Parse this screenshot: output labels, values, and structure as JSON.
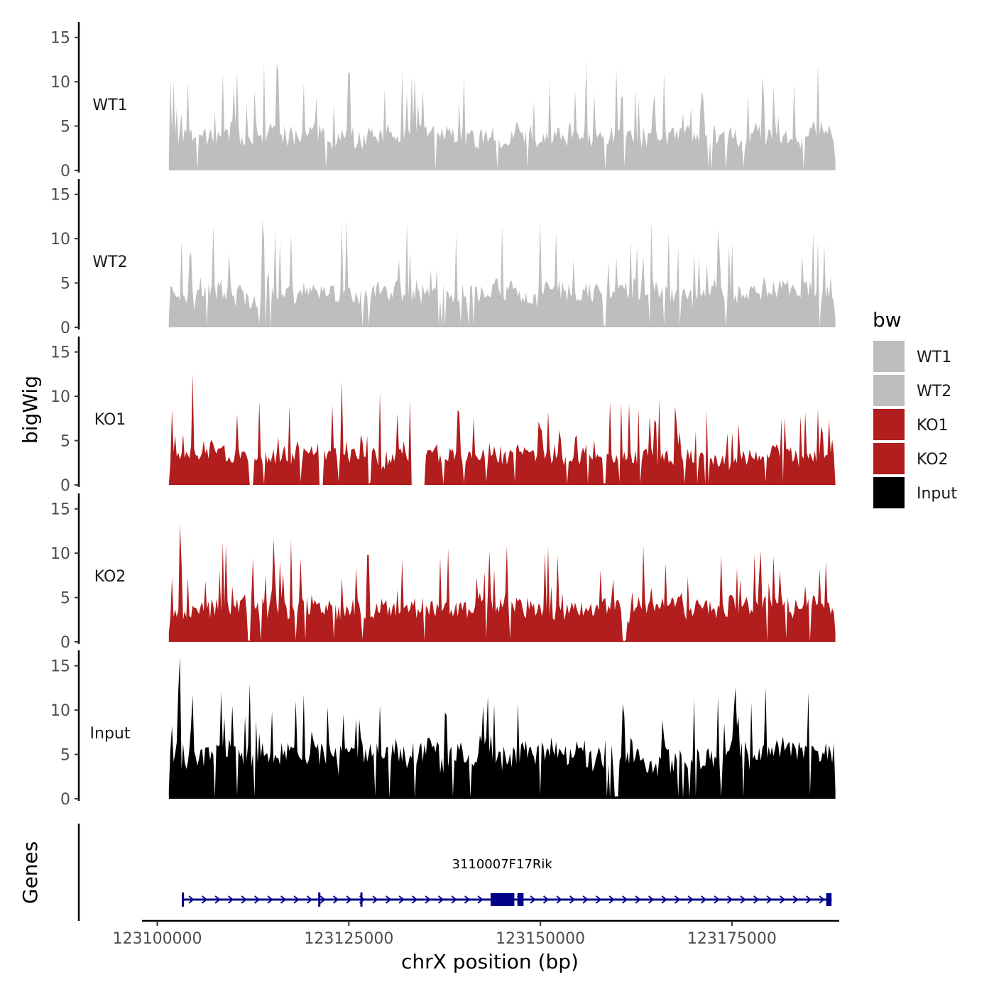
{
  "chart_data": {
    "type": "area",
    "y_axis_title": "bigWig",
    "x_axis_title": "chrX position (bp)",
    "genes_axis_title": "Genes",
    "x_range": [
      123098000,
      123189000
    ],
    "x_ticks": [
      123100000,
      123125000,
      123150000,
      123175000
    ],
    "x_tick_labels": [
      "123100000",
      "123125000",
      "123150000",
      "123175000"
    ],
    "track_x_range": [
      123101500,
      123188500
    ],
    "y_range": [
      0,
      16.5
    ],
    "y_ticks": [
      0,
      5,
      10,
      15
    ],
    "y_tick_labels": [
      "0",
      "5",
      "10",
      "15"
    ],
    "tracks": [
      {
        "name": "WT1",
        "color": "#bebebe",
        "seed": 11,
        "base": 2.6,
        "spike": 10.5,
        "max": 12.4,
        "peaks": [
          [
            123102200,
            10.0
          ],
          [
            123108500,
            11.0
          ],
          [
            123125000,
            11.0
          ],
          [
            123140000,
            10.6
          ],
          [
            123156000,
            12.4
          ],
          [
            123179000,
            10.5
          ]
        ]
      },
      {
        "name": "WT2",
        "color": "#bebebe",
        "seed": 23,
        "base": 2.6,
        "spike": 10.5,
        "max": 12.1,
        "peaks": [
          [
            123114000,
            10.0
          ],
          [
            123139000,
            10.5
          ],
          [
            123145000,
            11.5
          ],
          [
            123150000,
            12.0
          ],
          [
            123152000,
            10.8
          ],
          [
            123175000,
            9.5
          ],
          [
            123187000,
            9.3
          ]
        ]
      },
      {
        "name": "KO1",
        "color": "#b21d1d",
        "seed": 37,
        "base": 2.2,
        "spike": 9.0,
        "max": 12.5,
        "peaks": [
          [
            123104600,
            12.5
          ],
          [
            123124000,
            11.8
          ],
          [
            123129000,
            10.4
          ],
          [
            123151000,
            8.3
          ],
          [
            123184000,
            7.8
          ]
        ],
        "gaps": [
          [
            123112000,
            123112600
          ],
          [
            123121000,
            123121600
          ],
          [
            123133000,
            123135000
          ]
        ]
      },
      {
        "name": "KO2",
        "color": "#b21d1d",
        "seed": 53,
        "base": 2.6,
        "spike": 9.5,
        "max": 13.3,
        "peaks": [
          [
            123103000,
            13.3
          ],
          [
            123108500,
            11.2
          ],
          [
            123127500,
            9.8
          ],
          [
            123138000,
            10.5
          ],
          [
            123151000,
            10.8
          ],
          [
            123178000,
            9.8
          ]
        ]
      },
      {
        "name": "Input",
        "color": "#000000",
        "seed": 71,
        "base": 3.3,
        "spike": 10.0,
        "max": 16.0,
        "peaks": [
          [
            123103000,
            16.0
          ],
          [
            123112000,
            13.0
          ],
          [
            123118000,
            11.0
          ],
          [
            123129000,
            10.5
          ],
          [
            123147000,
            10.8
          ],
          [
            123170000,
            11.3
          ],
          [
            123185000,
            12.0
          ]
        ]
      }
    ],
    "legend": {
      "title": "bw",
      "items": [
        {
          "label": "WT1",
          "color": "#bebebe"
        },
        {
          "label": "WT2",
          "color": "#bebebe"
        },
        {
          "label": "KO1",
          "color": "#b21d1d"
        },
        {
          "label": "KO2",
          "color": "#b21d1d"
        },
        {
          "label": "Input",
          "color": "#000000"
        }
      ]
    },
    "gene": {
      "name": "3110007F17Rik",
      "color": "#00008b",
      "start": 123103200,
      "end": 123188000,
      "strand": "+",
      "exons": [
        [
          123103200,
          123103400
        ],
        [
          123121000,
          123121200
        ],
        [
          123126500,
          123126700
        ],
        [
          123143500,
          123146600
        ],
        [
          123147000,
          123147800
        ],
        [
          123187300,
          123188000
        ]
      ],
      "label_position": 123145000
    }
  }
}
